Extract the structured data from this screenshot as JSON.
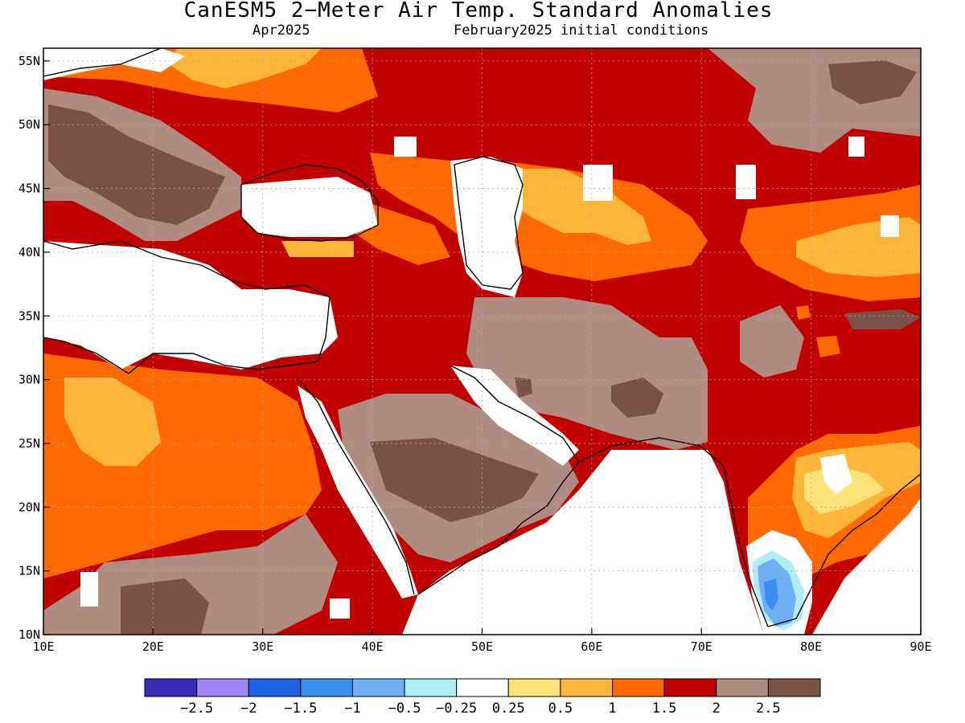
{
  "title": "CanESM5 2−Meter Air Temp. Standard Anomalies",
  "subtitle_left": "Apr2025",
  "subtitle_right": "February2025 initial conditions",
  "map": {
    "lon_range": [
      10,
      90
    ],
    "lat_range": [
      10,
      56
    ],
    "lon_ticks": [
      "10E",
      "20E",
      "30E",
      "40E",
      "50E",
      "60E",
      "70E",
      "80E",
      "90E"
    ],
    "lat_ticks": [
      "10N",
      "15N",
      "20N",
      "25N",
      "30N",
      "35N",
      "40N",
      "45N",
      "50N",
      "55N"
    ]
  },
  "colorbar": {
    "colors": [
      "#3a2ab5",
      "#9f86f6",
      "#1f62e3",
      "#3b8df0",
      "#6fb0f4",
      "#b1ecf4",
      "#ffffff",
      "#fde27c",
      "#feb63a",
      "#fe6a00",
      "#c10000",
      "#b08b81",
      "#7a5146"
    ],
    "labels": [
      "−2.5",
      "−2",
      "−1.5",
      "−1",
      "−0.5",
      "−0.25",
      "0.25",
      "0.5",
      "1",
      "1.5",
      "2",
      "2.5"
    ]
  }
}
